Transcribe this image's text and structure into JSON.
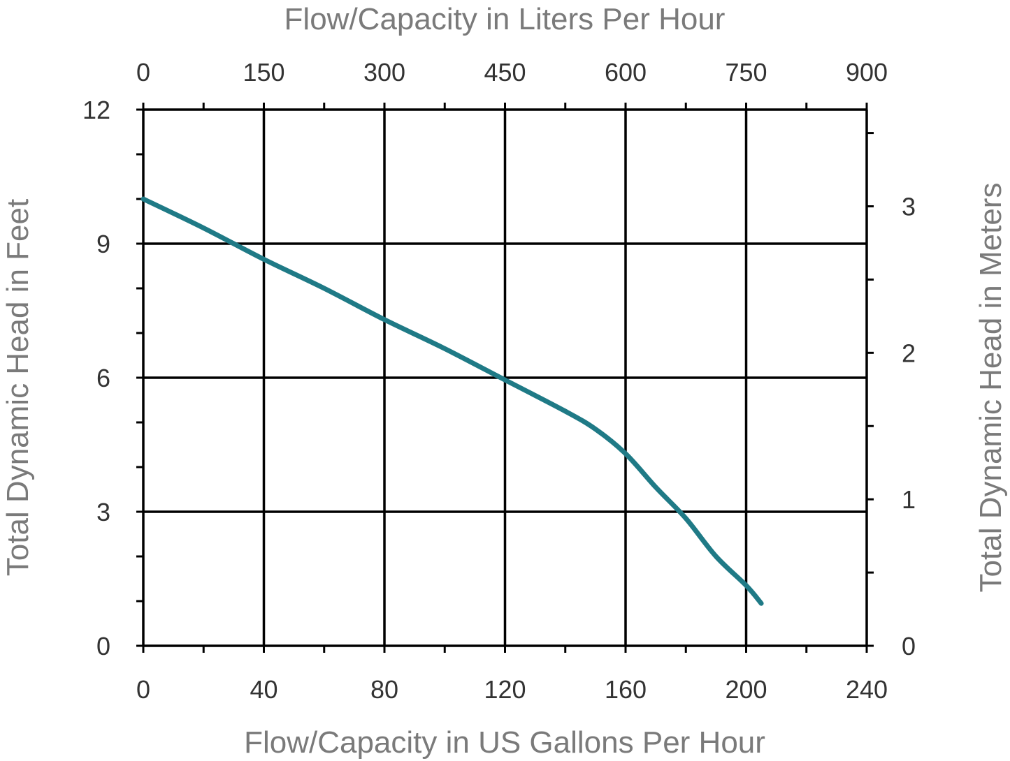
{
  "chart_data": {
    "type": "line",
    "title": "",
    "top_axis": {
      "label": "Flow/Capacity in Liters Per Hour",
      "ticks": [
        "0",
        "150",
        "300",
        "450",
        "600",
        "750",
        "900"
      ],
      "range": [
        0,
        900
      ]
    },
    "bottom_axis": {
      "label": "Flow/Capacity in US Gallons Per Hour",
      "ticks": [
        "0",
        "40",
        "80",
        "120",
        "160",
        "200",
        "240"
      ],
      "range": [
        0,
        240
      ]
    },
    "left_axis": {
      "label": "Total Dynamic Head in Feet",
      "ticks": [
        "0",
        "3",
        "6",
        "9",
        "12"
      ],
      "range": [
        0,
        12
      ]
    },
    "right_axis": {
      "label": "Total Dynamic Head in Meters",
      "ticks": [
        "0",
        "1",
        "2",
        "3"
      ],
      "range": [
        0,
        3.66
      ]
    },
    "grid": true,
    "series": [
      {
        "color": "#1f7a86",
        "x": [
          0,
          20,
          40,
          60,
          80,
          100,
          120,
          140,
          150,
          160,
          170,
          180,
          190,
          200,
          205
        ],
        "y": [
          10.0,
          9.35,
          8.65,
          8.0,
          7.3,
          6.65,
          5.95,
          5.25,
          4.85,
          4.3,
          3.55,
          2.85,
          2.0,
          1.35,
          0.95
        ]
      }
    ]
  }
}
